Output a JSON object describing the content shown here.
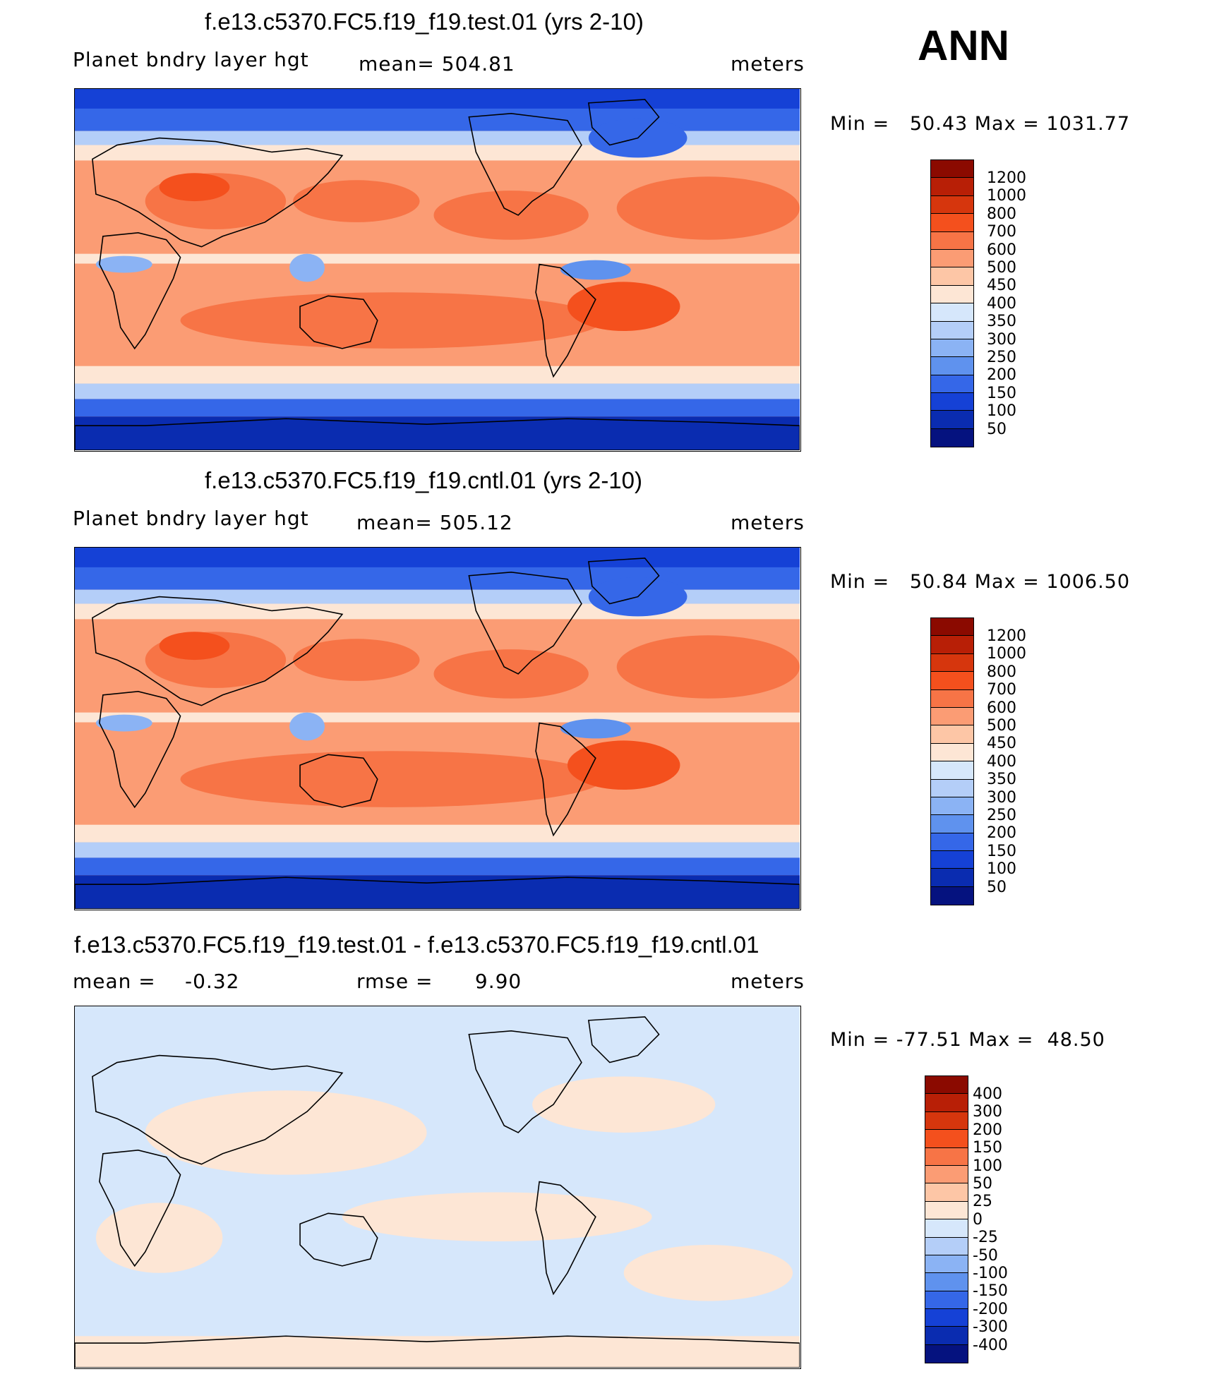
{
  "season": "ANN",
  "panels": [
    {
      "id": "test",
      "title": "f.e13.c5370.FC5.f19_f19.test.01 (yrs 2-10)",
      "variable": "Planet bndry layer hgt",
      "stat": "mean= 504.81",
      "units": "meters",
      "min_label": "Min =",
      "min_value": "50.43",
      "max_label": "Max =",
      "max_value": "1031.77",
      "colorbar_levels": [
        "1200",
        "1000",
        "800",
        "700",
        "600",
        "500",
        "450",
        "400",
        "350",
        "300",
        "250",
        "200",
        "150",
        "100",
        "50"
      ],
      "colorbar_colors": [
        "#8b0a00",
        "#b81f06",
        "#d6360d",
        "#f4501d",
        "#f77446",
        "#fb9c74",
        "#fdc6a6",
        "#fde6d5",
        "#d6e7fb",
        "#b4cef8",
        "#8bb3f4",
        "#5f92ee",
        "#3567e8",
        "#1541d6",
        "#0a2cb0",
        "#05127f"
      ],
      "map_type": "sequential"
    },
    {
      "id": "cntl",
      "title": "f.e13.c5370.FC5.f19_f19.cntl.01 (yrs 2-10)",
      "variable": "Planet bndry layer hgt",
      "stat": "mean= 505.12",
      "units": "meters",
      "min_label": "Min =",
      "min_value": "50.84",
      "max_label": "Max =",
      "max_value": "1006.50",
      "colorbar_levels": [
        "1200",
        "1000",
        "800",
        "700",
        "600",
        "500",
        "450",
        "400",
        "350",
        "300",
        "250",
        "200",
        "150",
        "100",
        "50"
      ],
      "colorbar_colors": [
        "#8b0a00",
        "#b81f06",
        "#d6360d",
        "#f4501d",
        "#f77446",
        "#fb9c74",
        "#fdc6a6",
        "#fde6d5",
        "#d6e7fb",
        "#b4cef8",
        "#8bb3f4",
        "#5f92ee",
        "#3567e8",
        "#1541d6",
        "#0a2cb0",
        "#05127f"
      ],
      "map_type": "sequential"
    },
    {
      "id": "diff",
      "title": "f.e13.c5370.FC5.f19_f19.test.01 - f.e13.c5370.FC5.f19_f19.cntl.01",
      "variable": "mean =",
      "stat": "-0.32",
      "stat2": "rmse =      9.90",
      "units": "meters",
      "min_label": "Min =",
      "min_value": "-77.51",
      "max_label": "Max =",
      "max_value": "48.50",
      "colorbar_levels": [
        "400",
        "300",
        "200",
        "150",
        "100",
        "50",
        "25",
        "0",
        "-25",
        "-50",
        "-100",
        "-150",
        "-200",
        "-300",
        "-400"
      ],
      "colorbar_colors": [
        "#8b0a00",
        "#b81f06",
        "#d6360d",
        "#f4501d",
        "#f77446",
        "#fb9c74",
        "#fdc6a6",
        "#fde6d5",
        "#d6e7fb",
        "#b4cef8",
        "#8bb3f4",
        "#5f92ee",
        "#3567e8",
        "#1541d6",
        "#0a2cb0",
        "#05127f"
      ],
      "map_type": "difference"
    }
  ]
}
